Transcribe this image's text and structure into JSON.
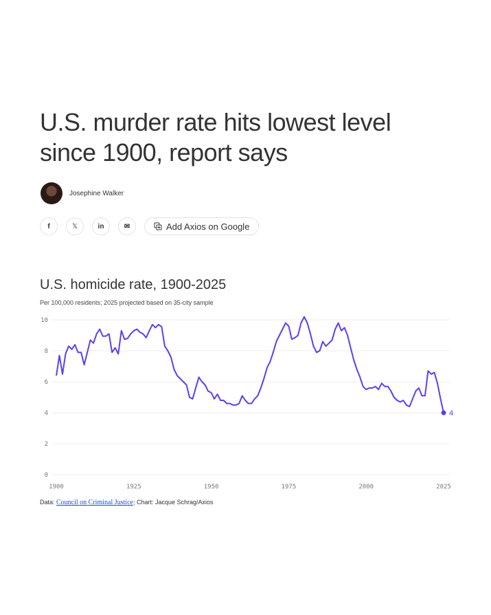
{
  "headline": "U.S. murder rate hits lowest level since 1900, report says",
  "author": "Josephine Walker",
  "share": {
    "facebook": "f",
    "x": "𝕏",
    "linkedin": "in",
    "email": "✉",
    "add_google": "Add Axios on Google"
  },
  "chart_data": {
    "type": "line",
    "title": "U.S. homicide rate, 1900-2025",
    "subtitle": "Per 100,000 residents; 2025 projected based on 35-city sample",
    "xlim": [
      1900,
      2025
    ],
    "ylim": [
      0,
      10
    ],
    "xticks": [
      "1900",
      "1925",
      "1950",
      "1975",
      "2000",
      "2025"
    ],
    "yticks": [
      "0",
      "2",
      "4",
      "6",
      "8",
      "10"
    ],
    "end_label": "4",
    "color": "#5a3ff0",
    "x_start": 1900,
    "values": [
      6.4,
      7.7,
      6.5,
      7.8,
      8.3,
      8.1,
      8.4,
      7.9,
      7.9,
      7.1,
      7.9,
      8.7,
      8.5,
      9.1,
      9.4,
      8.95,
      8.95,
      9.1,
      7.9,
      8.2,
      7.8,
      9.3,
      8.75,
      8.8,
      9.1,
      9.3,
      9.4,
      9.2,
      9.1,
      8.85,
      9.3,
      9.7,
      9.5,
      9.7,
      9.55,
      8.3,
      8.0,
      7.6,
      6.8,
      6.4,
      6.2,
      6.0,
      5.8,
      5.0,
      4.9,
      5.6,
      6.3,
      6.0,
      5.8,
      5.4,
      5.3,
      4.9,
      5.2,
      4.8,
      4.8,
      4.6,
      4.6,
      4.5,
      4.5,
      4.6,
      5.1,
      4.8,
      4.6,
      4.6,
      4.9,
      5.1,
      5.6,
      6.2,
      6.9,
      7.3,
      7.9,
      8.6,
      9.0,
      9.4,
      9.8,
      9.6,
      8.75,
      8.85,
      9.0,
      9.8,
      10.2,
      9.8,
      9.1,
      8.3,
      7.9,
      8.0,
      8.6,
      8.3,
      8.5,
      8.7,
      9.4,
      9.8,
      9.3,
      9.5,
      9.0,
      8.2,
      7.4,
      6.8,
      6.3,
      5.7,
      5.5,
      5.6,
      5.6,
      5.7,
      5.5,
      5.9,
      5.7,
      5.7,
      5.4,
      5.0,
      4.8,
      4.7,
      4.8,
      4.5,
      4.4,
      4.9,
      5.4,
      5.6,
      5.1,
      5.1,
      6.7,
      6.5,
      6.6,
      5.9,
      4.9,
      4.0
    ]
  },
  "source": {
    "prefix": "Data: ",
    "link": "Council on Criminal Justice",
    "suffix": "; Chart: Jacque Schrag/Axios"
  }
}
